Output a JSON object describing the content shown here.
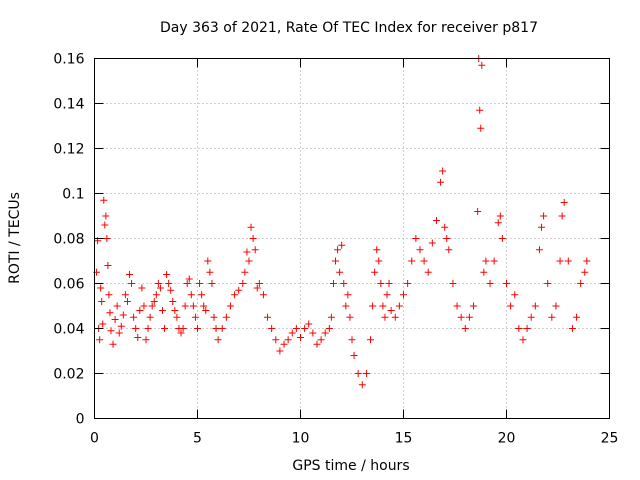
{
  "chart_data": {
    "type": "scatter",
    "title": "Day 363 of 2021, Rate Of TEC Index for receiver p817",
    "xlabel": "GPS time / hours",
    "ylabel": "ROTI / TECUs",
    "xlim": [
      0,
      25
    ],
    "ylim": [
      0,
      0.16
    ],
    "xticks": [
      0,
      5,
      10,
      15,
      20,
      25
    ],
    "xtick_labels": [
      "0",
      "5",
      "10",
      "15",
      "20",
      "25"
    ],
    "yticks": [
      0,
      0.02,
      0.04,
      0.06,
      0.08,
      0.1,
      0.12,
      0.14,
      0.16
    ],
    "ytick_labels": [
      "0",
      "0.02",
      "0.04",
      "0.06",
      "0.08",
      "0.1",
      "0.12",
      "0.14",
      "0.16"
    ],
    "grid": true,
    "marker": "+",
    "color": "#ff0000",
    "points": [
      [
        0.1,
        0.065
      ],
      [
        0.15,
        0.079
      ],
      [
        0.2,
        0.04
      ],
      [
        0.25,
        0.035
      ],
      [
        0.3,
        0.058
      ],
      [
        0.35,
        0.052
      ],
      [
        0.4,
        0.042
      ],
      [
        0.45,
        0.097
      ],
      [
        0.5,
        0.086
      ],
      [
        0.55,
        0.09
      ],
      [
        0.6,
        0.08
      ],
      [
        0.65,
        0.068
      ],
      [
        0.7,
        0.055
      ],
      [
        0.75,
        0.047
      ],
      [
        0.8,
        0.039
      ],
      [
        0.9,
        0.033
      ],
      [
        1.0,
        0.044
      ],
      [
        1.1,
        0.05
      ],
      [
        1.2,
        0.038
      ],
      [
        1.3,
        0.041
      ],
      [
        1.4,
        0.046
      ],
      [
        1.5,
        0.055
      ],
      [
        1.6,
        0.052
      ],
      [
        1.7,
        0.064
      ],
      [
        1.8,
        0.06
      ],
      [
        1.9,
        0.045
      ],
      [
        2.0,
        0.04
      ],
      [
        2.1,
        0.036
      ],
      [
        2.2,
        0.048
      ],
      [
        2.3,
        0.058
      ],
      [
        2.4,
        0.05
      ],
      [
        2.5,
        0.035
      ],
      [
        2.6,
        0.04
      ],
      [
        2.7,
        0.045
      ],
      [
        2.8,
        0.05
      ],
      [
        2.9,
        0.052
      ],
      [
        3.0,
        0.055
      ],
      [
        3.1,
        0.06
      ],
      [
        3.2,
        0.058
      ],
      [
        3.3,
        0.048
      ],
      [
        3.4,
        0.04
      ],
      [
        3.5,
        0.064
      ],
      [
        3.6,
        0.06
      ],
      [
        3.7,
        0.057
      ],
      [
        3.8,
        0.052
      ],
      [
        3.9,
        0.048
      ],
      [
        4.0,
        0.045
      ],
      [
        4.1,
        0.04
      ],
      [
        4.2,
        0.038
      ],
      [
        4.3,
        0.04
      ],
      [
        4.4,
        0.05
      ],
      [
        4.5,
        0.06
      ],
      [
        4.6,
        0.062
      ],
      [
        4.7,
        0.055
      ],
      [
        4.8,
        0.05
      ],
      [
        4.9,
        0.045
      ],
      [
        5.0,
        0.04
      ],
      [
        5.1,
        0.06
      ],
      [
        5.2,
        0.055
      ],
      [
        5.3,
        0.05
      ],
      [
        5.4,
        0.048
      ],
      [
        5.5,
        0.07
      ],
      [
        5.6,
        0.065
      ],
      [
        5.7,
        0.06
      ],
      [
        5.8,
        0.045
      ],
      [
        5.9,
        0.04
      ],
      [
        6.0,
        0.035
      ],
      [
        6.2,
        0.04
      ],
      [
        6.4,
        0.045
      ],
      [
        6.6,
        0.05
      ],
      [
        6.8,
        0.055
      ],
      [
        7.0,
        0.057
      ],
      [
        7.2,
        0.06
      ],
      [
        7.3,
        0.065
      ],
      [
        7.4,
        0.074
      ],
      [
        7.5,
        0.07
      ],
      [
        7.6,
        0.085
      ],
      [
        7.7,
        0.08
      ],
      [
        7.8,
        0.075
      ],
      [
        7.9,
        0.058
      ],
      [
        8.0,
        0.06
      ],
      [
        8.2,
        0.055
      ],
      [
        8.4,
        0.045
      ],
      [
        8.6,
        0.04
      ],
      [
        8.8,
        0.035
      ],
      [
        9.0,
        0.03
      ],
      [
        9.2,
        0.033
      ],
      [
        9.4,
        0.035
      ],
      [
        9.6,
        0.038
      ],
      [
        9.8,
        0.04
      ],
      [
        10.0,
        0.036
      ],
      [
        10.2,
        0.04
      ],
      [
        10.4,
        0.042
      ],
      [
        10.6,
        0.038
      ],
      [
        10.8,
        0.033
      ],
      [
        11.0,
        0.035
      ],
      [
        11.2,
        0.038
      ],
      [
        11.4,
        0.04
      ],
      [
        11.5,
        0.045
      ],
      [
        11.6,
        0.06
      ],
      [
        11.7,
        0.07
      ],
      [
        11.8,
        0.075
      ],
      [
        11.9,
        0.065
      ],
      [
        12.0,
        0.077
      ],
      [
        12.1,
        0.06
      ],
      [
        12.2,
        0.05
      ],
      [
        12.3,
        0.055
      ],
      [
        12.4,
        0.045
      ],
      [
        12.5,
        0.035
      ],
      [
        12.6,
        0.028
      ],
      [
        12.8,
        0.02
      ],
      [
        13.0,
        0.015
      ],
      [
        13.2,
        0.02
      ],
      [
        13.4,
        0.035
      ],
      [
        13.5,
        0.05
      ],
      [
        13.6,
        0.065
      ],
      [
        13.7,
        0.075
      ],
      [
        13.8,
        0.07
      ],
      [
        13.9,
        0.06
      ],
      [
        14.0,
        0.05
      ],
      [
        14.1,
        0.045
      ],
      [
        14.2,
        0.055
      ],
      [
        14.3,
        0.06
      ],
      [
        14.4,
        0.048
      ],
      [
        14.6,
        0.045
      ],
      [
        14.8,
        0.05
      ],
      [
        15.0,
        0.055
      ],
      [
        15.2,
        0.06
      ],
      [
        15.4,
        0.07
      ],
      [
        15.6,
        0.08
      ],
      [
        15.8,
        0.075
      ],
      [
        16.0,
        0.07
      ],
      [
        16.2,
        0.065
      ],
      [
        16.4,
        0.078
      ],
      [
        16.6,
        0.088
      ],
      [
        16.8,
        0.105
      ],
      [
        16.9,
        0.11
      ],
      [
        17.0,
        0.085
      ],
      [
        17.1,
        0.08
      ],
      [
        17.2,
        0.075
      ],
      [
        17.4,
        0.06
      ],
      [
        17.6,
        0.05
      ],
      [
        17.8,
        0.045
      ],
      [
        18.0,
        0.04
      ],
      [
        18.2,
        0.045
      ],
      [
        18.4,
        0.05
      ],
      [
        18.6,
        0.092
      ],
      [
        18.65,
        0.16
      ],
      [
        18.7,
        0.137
      ],
      [
        18.75,
        0.129
      ],
      [
        18.8,
        0.157
      ],
      [
        18.9,
        0.065
      ],
      [
        19.0,
        0.07
      ],
      [
        19.2,
        0.06
      ],
      [
        19.4,
        0.07
      ],
      [
        19.6,
        0.087
      ],
      [
        19.7,
        0.09
      ],
      [
        19.8,
        0.08
      ],
      [
        20.0,
        0.06
      ],
      [
        20.2,
        0.05
      ],
      [
        20.4,
        0.055
      ],
      [
        20.6,
        0.04
      ],
      [
        20.8,
        0.035
      ],
      [
        21.0,
        0.04
      ],
      [
        21.2,
        0.045
      ],
      [
        21.4,
        0.05
      ],
      [
        21.6,
        0.075
      ],
      [
        21.7,
        0.085
      ],
      [
        21.8,
        0.09
      ],
      [
        22.0,
        0.06
      ],
      [
        22.2,
        0.045
      ],
      [
        22.4,
        0.05
      ],
      [
        22.6,
        0.07
      ],
      [
        22.7,
        0.09
      ],
      [
        22.8,
        0.096
      ],
      [
        23.0,
        0.07
      ],
      [
        23.2,
        0.04
      ],
      [
        23.4,
        0.045
      ],
      [
        23.6,
        0.06
      ],
      [
        23.8,
        0.065
      ],
      [
        23.9,
        0.07
      ]
    ]
  }
}
